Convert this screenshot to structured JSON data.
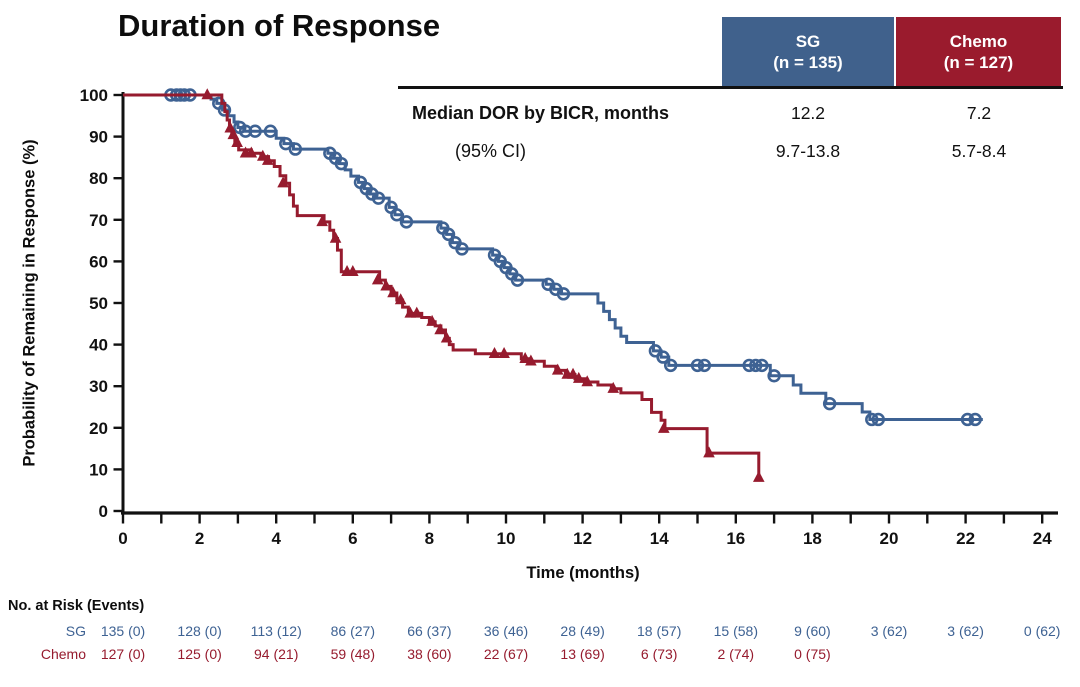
{
  "title": "Duration of Response",
  "summary_table": {
    "columns": [
      {
        "label_line1": "SG",
        "label_line2": "(n = 135)",
        "color": "#40618c"
      },
      {
        "label_line1": "Chemo",
        "label_line2": "(n = 127)",
        "color": "#9a1b2d"
      }
    ],
    "rows": [
      {
        "label": "Median DOR by BICR, months",
        "values": [
          "12.2",
          "7.2"
        ]
      },
      {
        "label": "(95% CI)",
        "values": [
          "9.7-13.8",
          "5.7-8.4"
        ]
      }
    ]
  },
  "chart_data": {
    "type": "line",
    "subtype": "kaplan-meier-step",
    "title": "Duration of Response",
    "xlabel": "Time (months)",
    "ylabel": "Probability of Remaining in Response (%)",
    "xlim": [
      0,
      24
    ],
    "ylim": [
      0,
      100
    ],
    "xticks": [
      0,
      2,
      4,
      6,
      8,
      10,
      12,
      14,
      16,
      18,
      20,
      22,
      24
    ],
    "xticks_minor": [
      1,
      3,
      5,
      7,
      9,
      11,
      13,
      15,
      17,
      19,
      21,
      23
    ],
    "yticks": [
      0,
      10,
      20,
      30,
      40,
      50,
      60,
      70,
      80,
      90,
      100
    ],
    "grid": false,
    "axis_color": "#111111",
    "series": [
      {
        "name": "SG",
        "color": "#3e6293",
        "marker": "circle",
        "start": [
          0,
          100
        ],
        "end_time": 22.45,
        "steps": [
          [
            2.3,
            99
          ],
          [
            2.45,
            98
          ],
          [
            2.6,
            96.4
          ],
          [
            2.75,
            95
          ],
          [
            2.9,
            93.5
          ],
          [
            3.0,
            92.2
          ],
          [
            3.15,
            91.3
          ],
          [
            4.0,
            89.6
          ],
          [
            4.2,
            88.3
          ],
          [
            4.45,
            87
          ],
          [
            5.35,
            86
          ],
          [
            5.5,
            84.8
          ],
          [
            5.65,
            83.5
          ],
          [
            5.8,
            82
          ],
          [
            5.95,
            80.5
          ],
          [
            6.15,
            79
          ],
          [
            6.3,
            77.5
          ],
          [
            6.45,
            76.2
          ],
          [
            6.6,
            75.2
          ],
          [
            6.95,
            73
          ],
          [
            7.1,
            71.2
          ],
          [
            7.3,
            69.5
          ],
          [
            8.3,
            68
          ],
          [
            8.45,
            66.5
          ],
          [
            8.6,
            64.5
          ],
          [
            8.75,
            63
          ],
          [
            9.65,
            61.5
          ],
          [
            9.8,
            60
          ],
          [
            9.95,
            58.5
          ],
          [
            10.1,
            57
          ],
          [
            10.25,
            55.5
          ],
          [
            11.05,
            54.5
          ],
          [
            11.25,
            53.3
          ],
          [
            11.45,
            52.2
          ],
          [
            12.4,
            50
          ],
          [
            12.55,
            48
          ],
          [
            12.7,
            46
          ],
          [
            12.85,
            44
          ],
          [
            13.0,
            42
          ],
          [
            13.15,
            40.5
          ],
          [
            13.85,
            38.5
          ],
          [
            14.05,
            37
          ],
          [
            14.25,
            35
          ],
          [
            16.9,
            32.5
          ],
          [
            17.5,
            30.3
          ],
          [
            17.7,
            28.3
          ],
          [
            18.35,
            25.8
          ],
          [
            19.3,
            23.8
          ],
          [
            19.5,
            22
          ]
        ],
        "censor_marks": [
          [
            1.25,
            100
          ],
          [
            1.4,
            100
          ],
          [
            1.5,
            100
          ],
          [
            1.6,
            100
          ],
          [
            1.75,
            100
          ],
          [
            2.5,
            98
          ],
          [
            2.65,
            96.4
          ],
          [
            3.05,
            92.2
          ],
          [
            3.2,
            91.3
          ],
          [
            3.45,
            91.3
          ],
          [
            3.85,
            91.3
          ],
          [
            4.25,
            88.3
          ],
          [
            4.5,
            87
          ],
          [
            5.4,
            86
          ],
          [
            5.55,
            84.8
          ],
          [
            5.7,
            83.5
          ],
          [
            6.2,
            79
          ],
          [
            6.35,
            77.5
          ],
          [
            6.5,
            76.2
          ],
          [
            6.67,
            75.2
          ],
          [
            7.0,
            73
          ],
          [
            7.15,
            71.2
          ],
          [
            7.4,
            69.5
          ],
          [
            8.35,
            68
          ],
          [
            8.5,
            66.5
          ],
          [
            8.67,
            64.5
          ],
          [
            8.85,
            63
          ],
          [
            9.7,
            61.5
          ],
          [
            9.85,
            60
          ],
          [
            10.0,
            58.5
          ],
          [
            10.15,
            57
          ],
          [
            10.3,
            55.5
          ],
          [
            11.1,
            54.5
          ],
          [
            11.3,
            53.3
          ],
          [
            11.5,
            52.2
          ],
          [
            13.9,
            38.5
          ],
          [
            14.1,
            37
          ],
          [
            14.3,
            35
          ],
          [
            15.0,
            35
          ],
          [
            15.18,
            35
          ],
          [
            16.35,
            35
          ],
          [
            16.52,
            35
          ],
          [
            16.68,
            35
          ],
          [
            17.0,
            32.5
          ],
          [
            18.45,
            25.8
          ],
          [
            19.55,
            22
          ],
          [
            19.72,
            22
          ],
          [
            22.05,
            22
          ],
          [
            22.25,
            22
          ]
        ]
      },
      {
        "name": "Chemo",
        "color": "#961b2e",
        "marker": "triangle",
        "start": [
          0,
          100
        ],
        "end_time": 16.6,
        "steps": [
          [
            2.58,
            98
          ],
          [
            2.66,
            96
          ],
          [
            2.72,
            94
          ],
          [
            2.78,
            92
          ],
          [
            2.84,
            90.4
          ],
          [
            2.92,
            88.5
          ],
          [
            3.02,
            86.8
          ],
          [
            3.35,
            86
          ],
          [
            3.6,
            85.2
          ],
          [
            3.8,
            84.2
          ],
          [
            3.95,
            82.8
          ],
          [
            4.1,
            80.6
          ],
          [
            4.25,
            78.8
          ],
          [
            4.35,
            76
          ],
          [
            4.45,
            73.3
          ],
          [
            4.55,
            71
          ],
          [
            5.25,
            69.5
          ],
          [
            5.4,
            67.5
          ],
          [
            5.5,
            65.5
          ],
          [
            5.6,
            62.7
          ],
          [
            5.7,
            57.5
          ],
          [
            6.7,
            55.5
          ],
          [
            6.85,
            54
          ],
          [
            7.0,
            52.4
          ],
          [
            7.15,
            50.7
          ],
          [
            7.3,
            49
          ],
          [
            7.45,
            47.5
          ],
          [
            7.8,
            46.5
          ],
          [
            8.0,
            45.5
          ],
          [
            8.15,
            44.5
          ],
          [
            8.3,
            43.5
          ],
          [
            8.42,
            41.5
          ],
          [
            8.52,
            40
          ],
          [
            8.62,
            38.7
          ],
          [
            9.2,
            37.8
          ],
          [
            10.4,
            36.6
          ],
          [
            10.6,
            36
          ],
          [
            11.0,
            34.8
          ],
          [
            11.3,
            33.8
          ],
          [
            11.55,
            32.8
          ],
          [
            11.8,
            31.8
          ],
          [
            12.05,
            31
          ],
          [
            12.4,
            30.3
          ],
          [
            12.75,
            29.4
          ],
          [
            13.0,
            28.4
          ],
          [
            13.55,
            26.8
          ],
          [
            13.8,
            23.7
          ],
          [
            14.05,
            21.8
          ],
          [
            14.15,
            19.8
          ],
          [
            15.25,
            13.9
          ],
          [
            16.6,
            8
          ]
        ],
        "censor_marks": [
          [
            2.2,
            100
          ],
          [
            2.8,
            92
          ],
          [
            2.88,
            90.4
          ],
          [
            2.98,
            88.5
          ],
          [
            3.2,
            86
          ],
          [
            3.35,
            86
          ],
          [
            3.65,
            85.2
          ],
          [
            3.78,
            84.2
          ],
          [
            4.18,
            78.8
          ],
          [
            5.2,
            69.5
          ],
          [
            5.55,
            65.5
          ],
          [
            5.85,
            57.5
          ],
          [
            6.0,
            57.5
          ],
          [
            6.65,
            55.5
          ],
          [
            6.87,
            54
          ],
          [
            7.05,
            52.4
          ],
          [
            7.25,
            50.7
          ],
          [
            7.5,
            47.5
          ],
          [
            7.67,
            47.5
          ],
          [
            8.07,
            45.5
          ],
          [
            8.28,
            43.5
          ],
          [
            8.45,
            41.5
          ],
          [
            9.7,
            37.8
          ],
          [
            9.95,
            37.8
          ],
          [
            10.5,
            36.6
          ],
          [
            10.65,
            36
          ],
          [
            11.35,
            33.8
          ],
          [
            11.6,
            32.8
          ],
          [
            11.75,
            32.8
          ],
          [
            11.9,
            31.8
          ],
          [
            12.12,
            31
          ],
          [
            12.8,
            29.4
          ],
          [
            14.12,
            19.8
          ],
          [
            15.3,
            13.9
          ],
          [
            16.6,
            8
          ]
        ]
      }
    ]
  },
  "risk_table": {
    "header": "No. at Risk (Events)",
    "times": [
      0,
      2,
      4,
      6,
      8,
      10,
      12,
      14,
      16,
      18,
      20,
      22,
      24
    ],
    "rows": [
      {
        "label": "SG",
        "color": "#3e6293",
        "values": [
          "135 (0)",
          "128 (0)",
          "113 (12)",
          "86 (27)",
          "66 (37)",
          "36 (46)",
          "28 (49)",
          "18 (57)",
          "15 (58)",
          "9 (60)",
          "3 (62)",
          "3 (62)",
          "0 (62)"
        ]
      },
      {
        "label": "Chemo",
        "color": "#961b2e",
        "values": [
          "127 (0)",
          "125 (0)",
          "94 (21)",
          "59 (48)",
          "38 (60)",
          "22 (67)",
          "13 (69)",
          "6 (73)",
          "2 (74)",
          "0 (75)"
        ]
      }
    ]
  }
}
